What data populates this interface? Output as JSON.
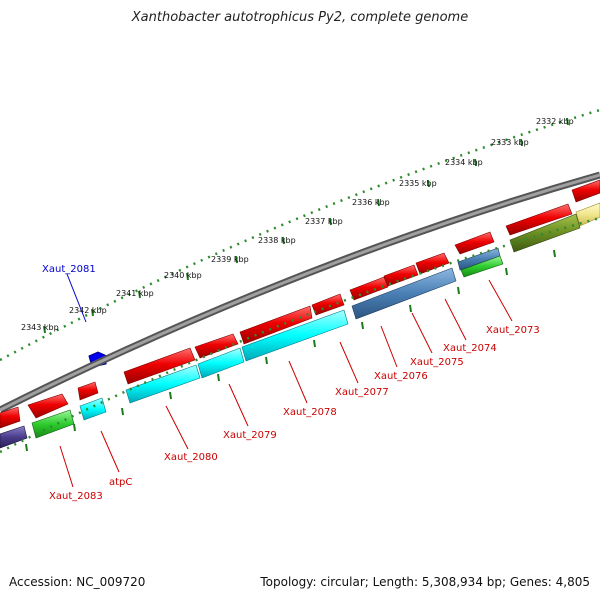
{
  "title": "Xanthobacter autotrophicus Py2, complete genome",
  "footer": {
    "accession": "Accession: NC_009720",
    "stats": "Topology: circular; Length: 5,308,934 bp; Genes: 4,805"
  },
  "ruler": {
    "labels": [
      "2332 kbp",
      "2333 kbp",
      "2334 kbp",
      "2335 kbp",
      "2336 kbp",
      "2337 kbp",
      "2338 kbp",
      "2339 kbp",
      "2340 kbp",
      "2341 kbp",
      "2342 kbp",
      "2343 kbp"
    ]
  },
  "gene_labels": [
    {
      "id": "Xaut_2073",
      "text": "Xaut_2073",
      "color": "#cc0000"
    },
    {
      "id": "Xaut_2074",
      "text": "Xaut_2074",
      "color": "#cc0000"
    },
    {
      "id": "Xaut_2075",
      "text": "Xaut_2075",
      "color": "#cc0000"
    },
    {
      "id": "Xaut_2076",
      "text": "Xaut_2076",
      "color": "#cc0000"
    },
    {
      "id": "Xaut_2077",
      "text": "Xaut_2077",
      "color": "#cc0000"
    },
    {
      "id": "Xaut_2078",
      "text": "Xaut_2078",
      "color": "#cc0000"
    },
    {
      "id": "Xaut_2079",
      "text": "Xaut_2079",
      "color": "#cc0000"
    },
    {
      "id": "Xaut_2080",
      "text": "Xaut_2080",
      "color": "#cc0000"
    },
    {
      "id": "atpC",
      "text": "atpC",
      "color": "#cc0000"
    },
    {
      "id": "Xaut_2083",
      "text": "Xaut_2083",
      "color": "#cc0000"
    },
    {
      "id": "Xaut_2081",
      "text": "Xaut_2081",
      "color": "#0000cc"
    }
  ],
  "colors": {
    "cds": "#ee0000",
    "rrna_cyan": "#00ffff",
    "cog_blue": "#4a7fb5",
    "cog_green": "#2ecc2e",
    "cog_olive": "#6b8e23",
    "cog_yellow": "#f0e68c",
    "cog_purple": "#4b3c8c",
    "feature_blue": "#0000ee",
    "backbone": "#808080",
    "tick_green": "#1e7a1e",
    "ruler_dot": "#2e8b2e"
  }
}
